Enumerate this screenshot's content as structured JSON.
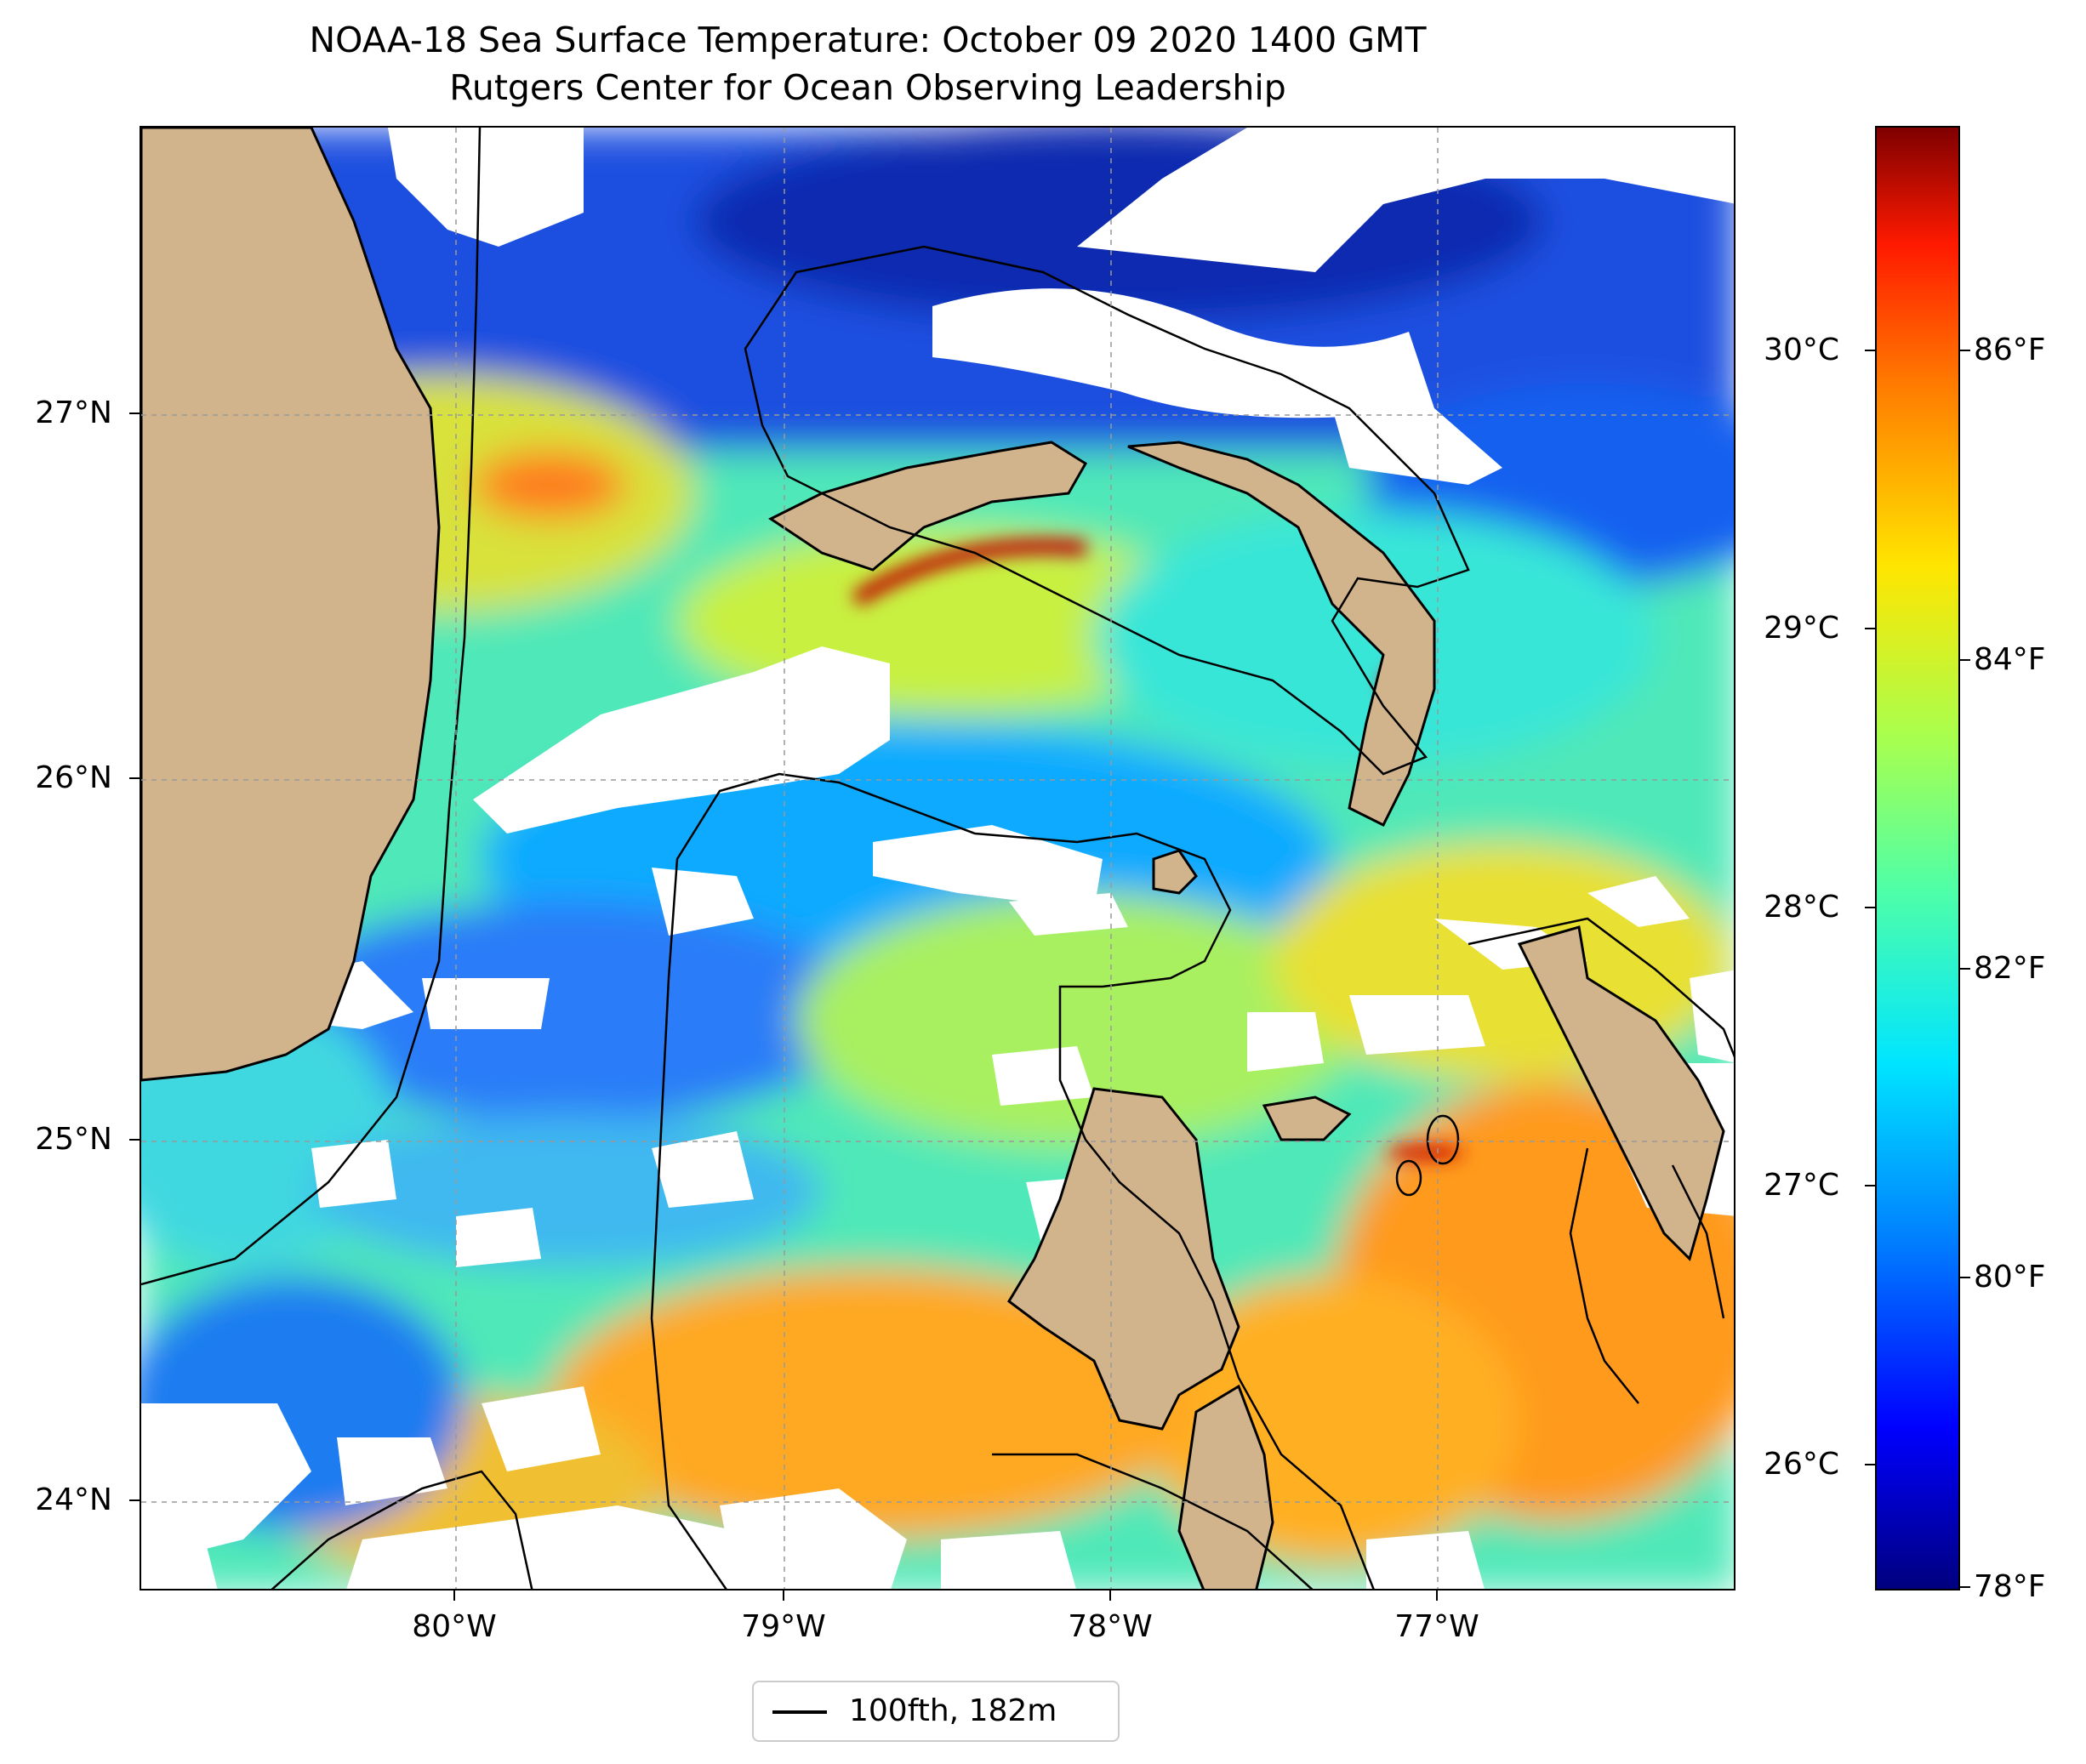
{
  "header": {
    "title": "NOAA-18 Sea Surface Temperature: October 09 2020 1400 GMT",
    "subtitle": "Rutgers Center for Ocean Observing Leadership"
  },
  "map": {
    "lon_range": [
      -80.97,
      -76.12
    ],
    "lat_range": [
      23.75,
      27.8
    ],
    "x_ticks": [
      "80°W",
      "79°W",
      "78°W",
      "77°W"
    ],
    "y_ticks": [
      "27°N",
      "26°N",
      "25°N",
      "24°N"
    ],
    "land_color": "#d2b48c",
    "gridlines": true
  },
  "colorbar": {
    "celsius_labels": [
      "30°C",
      "29°C",
      "28°C",
      "27°C",
      "26°C"
    ],
    "fahrenheit_labels": [
      "86°F",
      "84°F",
      "82°F",
      "80°F",
      "78°F"
    ],
    "colormap": "jet",
    "range_f": [
      78,
      87.5
    ]
  },
  "legend": {
    "label": "100fth, 182m",
    "line_color": "#000000"
  }
}
